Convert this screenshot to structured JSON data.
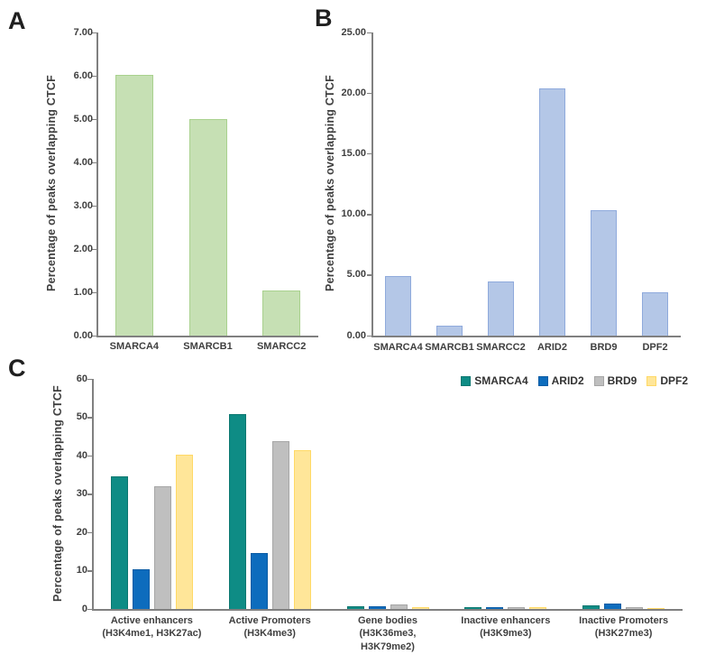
{
  "figure": {
    "panels": [
      {
        "letter": "A"
      },
      {
        "letter": "B"
      },
      {
        "letter": "C"
      }
    ]
  },
  "chart_data": [
    {
      "type": "bar",
      "panel": "A",
      "title": "",
      "xlabel": "",
      "ylabel": "Percentage of peaks overlapping CTCF",
      "categories": [
        "SMARCA4",
        "SMARCB1",
        "SMARCC2"
      ],
      "values": [
        6.02,
        5.0,
        1.05
      ],
      "ylim": [
        0,
        7
      ],
      "ytick_step": 1,
      "ytick_decimals": 2,
      "grid": false,
      "legend_position": "none",
      "bar_fill": "#C6E0B4",
      "bar_border": "#A9D18E"
    },
    {
      "type": "bar",
      "panel": "B",
      "title": "",
      "xlabel": "",
      "ylabel": "Percentage of peaks overlapping CTCF",
      "categories": [
        "SMARCA4",
        "SMARCB1",
        "SMARCC2",
        "ARID2",
        "BRD9",
        "DPF2"
      ],
      "values": [
        4.9,
        0.8,
        4.45,
        20.4,
        10.35,
        3.6
      ],
      "ylim": [
        0,
        25
      ],
      "ytick_step": 5,
      "ytick_decimals": 2,
      "grid": false,
      "legend_position": "none",
      "bar_fill": "#B4C7E7",
      "bar_border": "#8FAADC"
    },
    {
      "type": "bar",
      "panel": "C",
      "title": "",
      "xlabel": "",
      "ylabel": "Percentage of peaks overlapping CTCF",
      "categories": [
        [
          "Active enhancers",
          "(H3K4me1, H3K27ac)"
        ],
        [
          "Active Promoters",
          "(H3K4me3)"
        ],
        [
          "Gene bodies",
          "(H3K36me3,",
          "H3K79me2)"
        ],
        [
          "Inactive enhancers",
          "(H3K9me3)"
        ],
        [
          "Inactive Promoters",
          "(H3K27me3)"
        ]
      ],
      "series": [
        {
          "name": "SMARCA4",
          "fill": "#0E8C85",
          "border": "#0B7770",
          "values": [
            34.5,
            50.8,
            0.7,
            0.5,
            0.9
          ]
        },
        {
          "name": "ARID2",
          "fill": "#0D6CBD",
          "border": "#0B5CA4",
          "values": [
            10.3,
            14.7,
            0.8,
            0.5,
            1.3
          ]
        },
        {
          "name": "BRD9",
          "fill": "#BFBFBF",
          "border": "#A6A6A6",
          "values": [
            31.9,
            43.8,
            1.2,
            0.4,
            0.4
          ]
        },
        {
          "name": "DPF2",
          "fill": "#FFE699",
          "border": "#FFD966",
          "values": [
            40.3,
            41.4,
            0.5,
            0.5,
            0.3
          ]
        }
      ],
      "ylim": [
        0,
        60
      ],
      "ytick_step": 10,
      "ytick_decimals": 0,
      "grid": false,
      "legend_position": "top-right"
    }
  ]
}
